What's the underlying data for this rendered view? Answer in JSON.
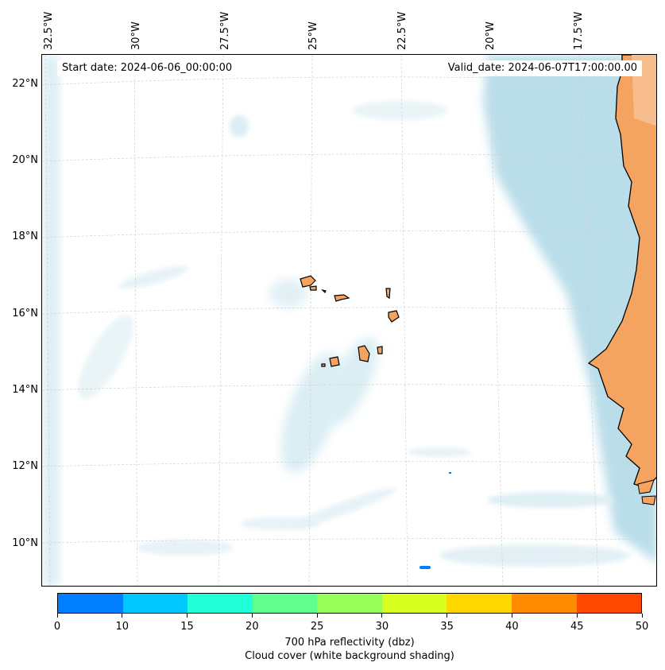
{
  "map": {
    "start_date": "Start date: 2024-06-06_00:00:00",
    "valid_date": "Valid_date: 2024-06-07T17:00:00.00",
    "lat_labels": [
      "22°N",
      "20°N",
      "18°N",
      "16°N",
      "14°N",
      "12°N",
      "10°N"
    ],
    "lon_labels": [
      "32.5°W",
      "30°W",
      "27.5°W",
      "25°W",
      "22.5°W",
      "20°W",
      "17.5°W"
    ],
    "colors": {
      "land": "#f4a460",
      "cloud": "#add8e6",
      "coast": "#000000",
      "grid": "#cccccc"
    }
  },
  "colorbar": {
    "ticks": [
      "0",
      "10",
      "15",
      "20",
      "25",
      "30",
      "35",
      "40",
      "45",
      "50"
    ],
    "colors": [
      "#0080ff",
      "#00c8ff",
      "#20ffd8",
      "#60ff90",
      "#98ff58",
      "#d8ff20",
      "#ffd800",
      "#ff8c00",
      "#ff4800"
    ],
    "label_line1": "700 hPa reflectivity (dbz)",
    "label_line2": "Cloud cover (white background shading)"
  }
}
